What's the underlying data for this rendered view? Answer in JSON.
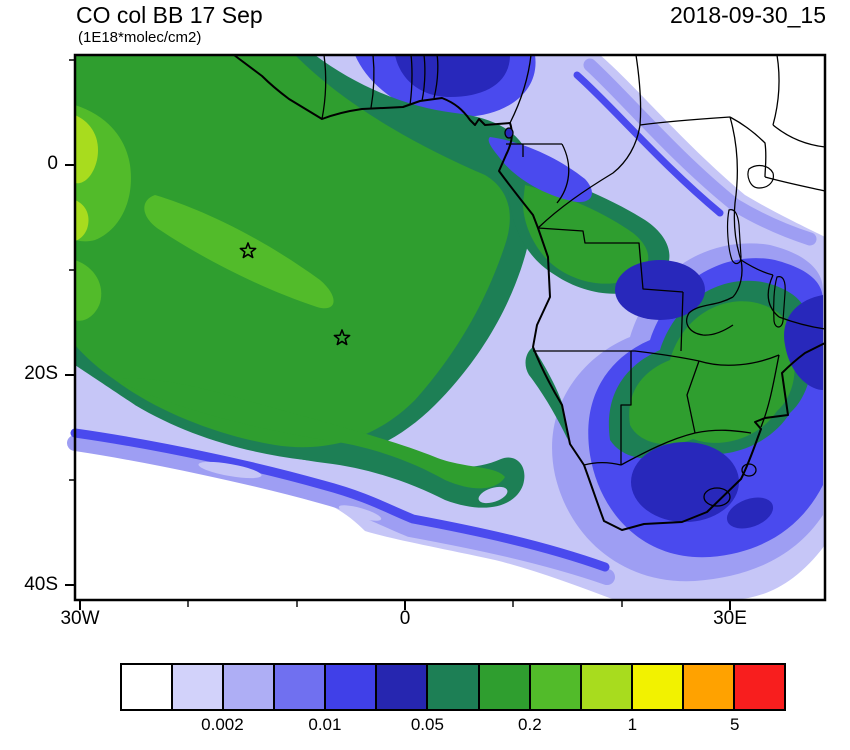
{
  "header": {
    "title": "CO col BB 17 Sep",
    "units_label": "(1E18*molec/cm2)",
    "timestamp": "2018-09-30_15"
  },
  "map": {
    "y_ticks": [
      "0",
      "20S",
      "40S"
    ],
    "x_ticks": [
      "30W",
      "0",
      "30E"
    ],
    "markers": [
      {
        "name": "star-marker",
        "approx_position": "14.5W, 8S (ocean, Ascension area)"
      },
      {
        "name": "star-marker",
        "approx_position": "6W, 16.5S (ocean, St Helena area)"
      }
    ]
  },
  "colorbar": {
    "tick_labels": [
      "0.002",
      "0.01",
      "0.05",
      "0.2",
      "1",
      "5"
    ],
    "colors": [
      "#ffffff",
      "#d2d2fa",
      "#aeaef5",
      "#7070f0",
      "#4040e8",
      "#2626b0",
      "#1d7f55",
      "#2f9e2f",
      "#52bb2a",
      "#a8dc1e",
      "#f2f200",
      "#ffa200",
      "#f81e1e"
    ]
  },
  "chart_data": {
    "type": "heatmap",
    "title": "CO col BB 17 Sep",
    "units": "1E18*molec/cm2",
    "time_label": "2018-09-30_15",
    "projection": "lat-lon map of Africa and the South Atlantic",
    "x_axis": {
      "label": "longitude",
      "tick_labels": [
        "30W",
        "0",
        "30E"
      ],
      "approx_range_deg": [
        -30.5,
        38.8
      ]
    },
    "y_axis": {
      "label": "latitude",
      "tick_labels": [
        "0",
        "20S",
        "40S"
      ],
      "approx_range_deg": [
        10.5,
        -41.4
      ]
    },
    "contour_levels": [
      0.001,
      0.002,
      0.005,
      0.01,
      0.02,
      0.05,
      0.1,
      0.2,
      0.5,
      1,
      2,
      5
    ],
    "labeled_levels": [
      0.002,
      0.01,
      0.05,
      0.2,
      1,
      5
    ],
    "palette": [
      "#ffffff",
      "#d2d2fa",
      "#aeaef5",
      "#7070f0",
      "#4040e8",
      "#2626b0",
      "#1d7f55",
      "#2f9e2f",
      "#52bb2a",
      "#a8dc1e",
      "#f2f200",
      "#ffa200",
      "#f81e1e"
    ],
    "legend_position": "bottom horizontal colorbar",
    "regions": [
      {
        "area": "tropical SE Atlantic / Gulf of Guinea biomass-burning plume core",
        "approx_value": "0.1-0.5"
      },
      {
        "area": "western map edge 0-10S bright patches",
        "approx_value": "0.5-1"
      },
      {
        "area": "plume sweep curving SE toward the Cape",
        "approx_value": "0.05-0.2"
      },
      {
        "area": "south-west Atlantic clear oval and map SW corner",
        "approx_value": "<0.001"
      },
      {
        "area": "north-east Africa (Sudan / Horn) corner",
        "approx_value": "<0.001"
      },
      {
        "area": "Zambia-Zimbabwe-Tanzania green core over land",
        "approx_value": "0.05-0.2"
      },
      {
        "area": "southern DRC, Mozambique, South Africa blue fringes",
        "approx_value": "0.005-0.05"
      },
      {
        "area": "two open-star island markers in the South Atlantic",
        "approx_value": "n/a"
      }
    ]
  }
}
